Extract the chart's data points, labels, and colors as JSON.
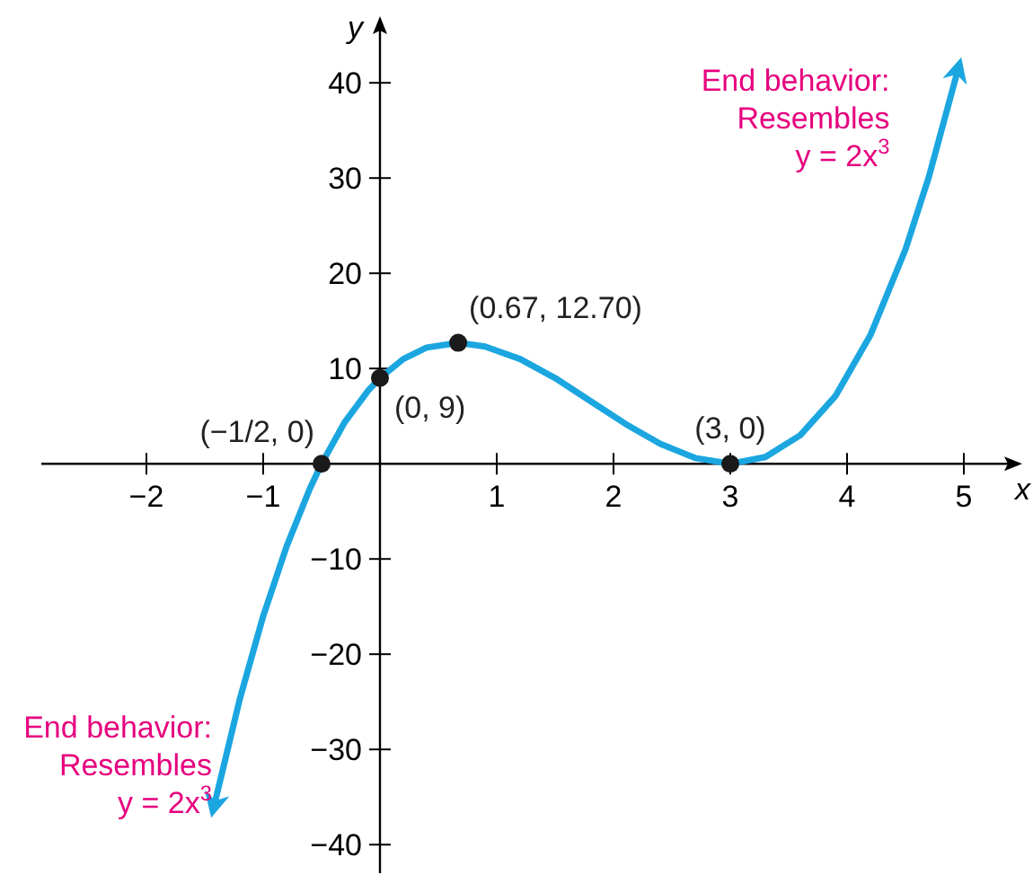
{
  "chart_data": {
    "type": "line",
    "xlabel": "x",
    "ylabel": "y",
    "xlim": [
      -2.9,
      5.5
    ],
    "ylim": [
      -43,
      47
    ],
    "xticks": [
      {
        "value": -2,
        "label": "−2"
      },
      {
        "value": -1,
        "label": "−1"
      },
      1,
      2,
      3,
      4,
      5
    ],
    "yticks": [
      {
        "value": -40,
        "label": "−40"
      },
      {
        "value": -30,
        "label": "−30"
      },
      {
        "value": -20,
        "label": "−20"
      },
      {
        "value": -10,
        "label": "−10"
      },
      10,
      20,
      30,
      40
    ],
    "series": [
      {
        "color": "#1ba6e0",
        "marker": "none",
        "x": [
          -1.42,
          -1.2,
          -1,
          -0.8,
          -0.6,
          -0.5,
          -0.3,
          -0.1,
          0,
          0.2,
          0.4,
          0.67,
          0.9,
          1.2,
          1.5,
          1.8,
          2.1,
          2.4,
          2.7,
          3,
          3.3,
          3.6,
          3.9,
          4.2,
          4.5,
          4.7,
          4.95
        ],
        "values": [
          -35.9,
          -24.7,
          -16,
          -8.7,
          -2.6,
          0,
          4.4,
          7.7,
          9,
          11,
          12.2,
          12.7,
          12.3,
          11,
          9,
          6.6,
          4.2,
          2.1,
          0.6,
          0,
          0.7,
          3,
          7.1,
          13.5,
          22.5,
          30.1,
          41.4
        ]
      },
      {
        "type": "scatter",
        "color": "#1a1a1a",
        "marker": "circle",
        "x": [
          -0.5,
          0,
          0.67,
          3
        ],
        "values": [
          0,
          9,
          12.7,
          0
        ]
      }
    ],
    "annotations": [
      {
        "text": "(−1/2, 0)",
        "x": -0.5,
        "y": 0
      },
      {
        "text": "(0, 9)",
        "x": 0,
        "y": 9
      },
      {
        "text": "(0.67, 12.70)",
        "x": 0.67,
        "y": 12.7
      },
      {
        "text": "(3, 0)",
        "x": 3,
        "y": 0
      },
      {
        "text": "End behavior:\nResembles\ny = 2x$^{3}$",
        "x": 4.95,
        "y": 41.4
      },
      {
        "text": "End behavior:\nResembles\ny = 2x$^{3}$",
        "x": -1.42,
        "y": -35.9
      }
    ]
  }
}
